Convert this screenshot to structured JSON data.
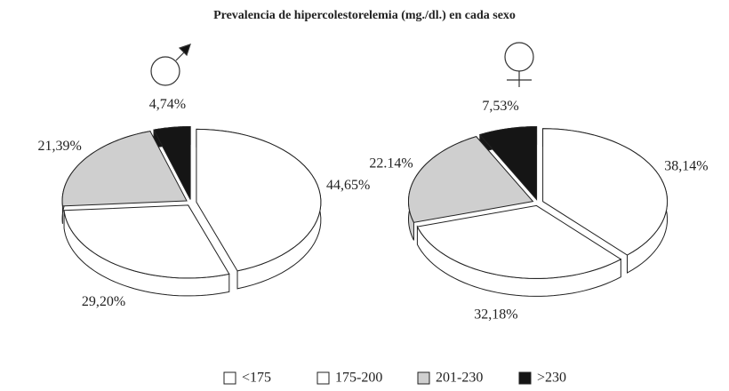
{
  "title": "Prevalencia de hipercolestorelemia (mg./dl.) en cada sexo",
  "categories": [
    "<175",
    "175-200",
    "201-230",
    ">230"
  ],
  "colors": [
    "#ffffff",
    "#ffffff",
    "#cfcfcf",
    "#151515"
  ],
  "chart_data": [
    {
      "type": "pie",
      "values": [
        44.65,
        29.2,
        21.39,
        4.74
      ],
      "value_labels": [
        "44,65%",
        "29,20%",
        "21,39%",
        "4,74%"
      ]
    },
    {
      "type": "pie",
      "values": [
        38.14,
        32.18,
        22.14,
        7.53
      ],
      "value_labels": [
        "38,14%",
        "32,18%",
        "22.14%",
        "7,53%"
      ]
    }
  ]
}
